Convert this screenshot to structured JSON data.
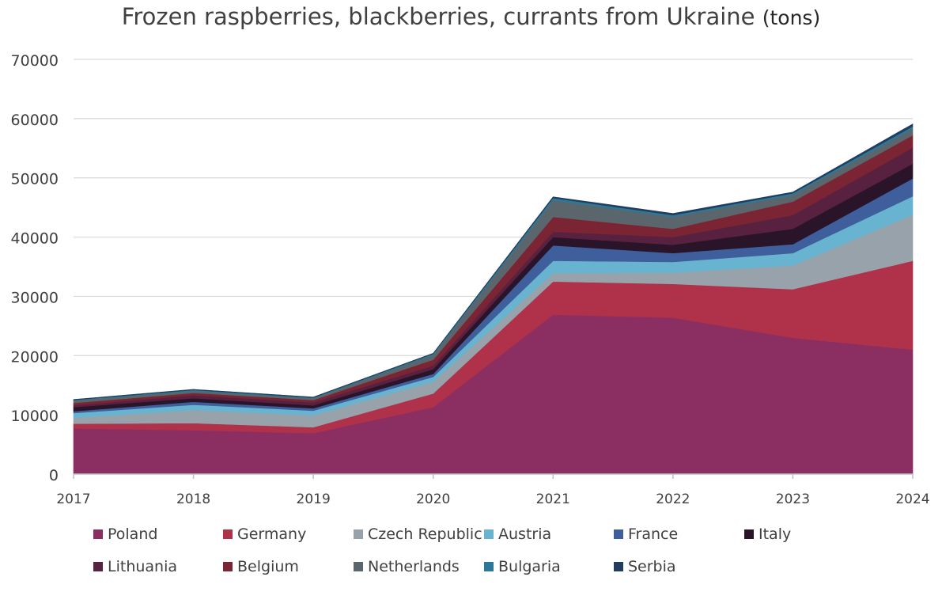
{
  "chart_data": {
    "type": "area",
    "stacked": true,
    "title": "Frozen raspberries, blackberries, currants from Ukraine",
    "title_unit": "(tons)",
    "xlabel": "",
    "ylabel": "",
    "x": [
      "2017",
      "2018",
      "2019",
      "2020",
      "2021",
      "2022",
      "2023",
      "2024"
    ],
    "ylim": [
      0,
      70000
    ],
    "yticks": [
      "0",
      "10000",
      "20000",
      "30000",
      "40000",
      "50000",
      "60000",
      "70000"
    ],
    "grid": true,
    "legend_position": "bottom",
    "series": [
      {
        "name": "Poland",
        "color": "#8b2f63",
        "values": [
          7700,
          7400,
          6900,
          11300,
          26900,
          26400,
          23000,
          21000
        ]
      },
      {
        "name": "Germany",
        "color": "#b0314a",
        "values": [
          800,
          1200,
          1000,
          2300,
          5600,
          5700,
          8200,
          15000
        ]
      },
      {
        "name": "Czech Republic",
        "color": "#98a2ab",
        "values": [
          1000,
          2200,
          2000,
          2000,
          1400,
          1900,
          4000,
          7800
        ]
      },
      {
        "name": "Austria",
        "color": "#68b3cf",
        "values": [
          800,
          900,
          800,
          800,
          2100,
          1800,
          2100,
          3100
        ]
      },
      {
        "name": "France",
        "color": "#3e5e9c",
        "values": [
          300,
          500,
          400,
          500,
          2600,
          1500,
          1500,
          3000
        ]
      },
      {
        "name": "Italy",
        "color": "#2a1429",
        "values": [
          700,
          600,
          500,
          800,
          1400,
          1400,
          2600,
          2500
        ]
      },
      {
        "name": "Lithuania",
        "color": "#58213f",
        "values": [
          300,
          500,
          500,
          600,
          900,
          1300,
          2300,
          2700
        ]
      },
      {
        "name": "Belgium",
        "color": "#7b2433",
        "values": [
          400,
          400,
          400,
          1000,
          2500,
          1400,
          2300,
          2100
        ]
      },
      {
        "name": "Netherlands",
        "color": "#5b666c",
        "values": [
          400,
          300,
          300,
          800,
          2800,
          2000,
          1100,
          1100
        ]
      },
      {
        "name": "Bulgaria",
        "color": "#2d7898",
        "values": [
          100,
          200,
          100,
          200,
          400,
          300,
          300,
          400
        ]
      },
      {
        "name": "Serbia",
        "color": "#223d5e",
        "values": [
          100,
          100,
          100,
          100,
          200,
          300,
          200,
          400
        ]
      }
    ]
  }
}
